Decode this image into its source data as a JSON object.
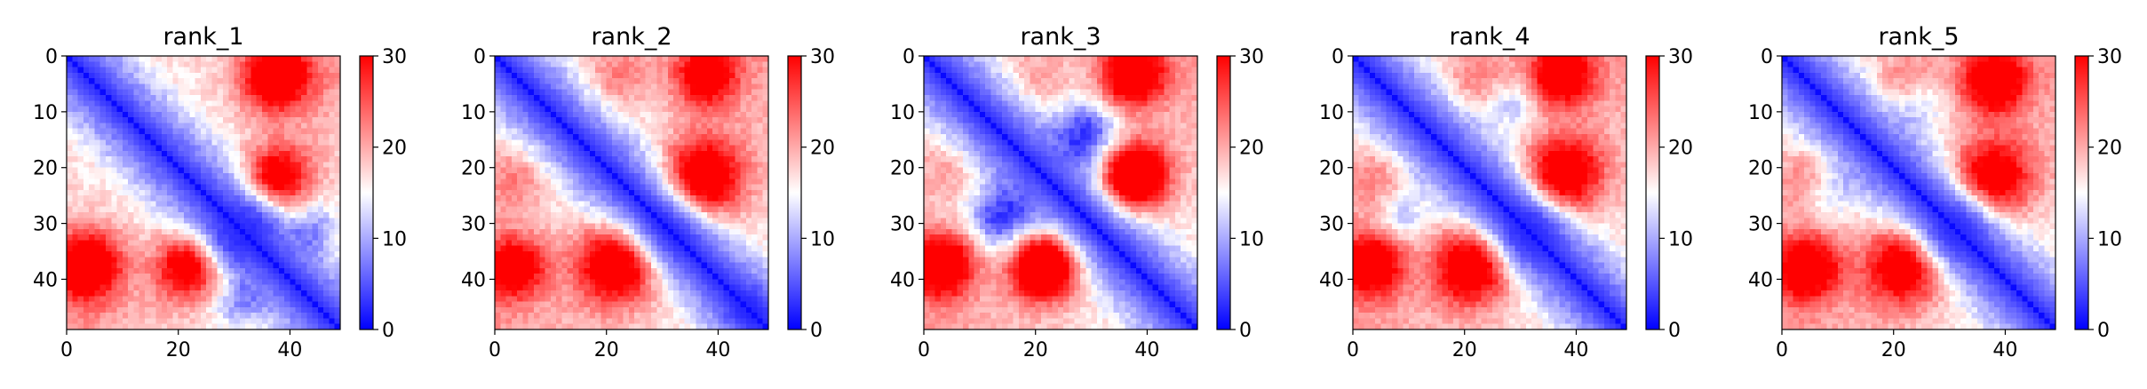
{
  "colors": {
    "low": "#0000ff",
    "mid": "#ffffff",
    "high": "#ff0000",
    "axis": "#000000"
  },
  "chart_data": [
    {
      "type": "heatmap",
      "title": "rank_1",
      "xlim": [
        0,
        49
      ],
      "ylim": [
        49,
        0
      ],
      "xticks": [
        0,
        20,
        40
      ],
      "yticks": [
        0,
        10,
        20,
        30,
        40
      ],
      "colorbar": {
        "colormap": "bwr",
        "min": 0,
        "max": 30,
        "ticks": [
          0,
          10,
          20,
          30
        ]
      },
      "n": 49,
      "hotspots": [
        {
          "x": 38,
          "y": 3,
          "value": 27,
          "sigma": 4.5
        },
        {
          "x": 38,
          "y": 20,
          "value": 24,
          "sigma": 4
        },
        {
          "x": 22,
          "y": 37,
          "value": 26,
          "sigma": 4
        },
        {
          "x": 4,
          "y": 36,
          "value": 25,
          "sigma": 4
        },
        {
          "x": 20,
          "y": 4,
          "value": 16,
          "sigma": 4
        }
      ],
      "coldspots": [
        {
          "x": 29,
          "y": 33,
          "value": 8,
          "sigma": 3.5
        },
        {
          "x": 44,
          "y": 30,
          "value": 9,
          "sigma": 3
        }
      ]
    },
    {
      "type": "heatmap",
      "title": "rank_2",
      "xlim": [
        0,
        49
      ],
      "ylim": [
        49,
        0
      ],
      "xticks": [
        0,
        20,
        40
      ],
      "yticks": [
        0,
        10,
        20,
        30,
        40
      ],
      "colorbar": {
        "colormap": "bwr",
        "min": 0,
        "max": 30,
        "ticks": [
          0,
          10,
          20,
          30
        ]
      },
      "n": 49,
      "hotspots": [
        {
          "x": 37,
          "y": 20,
          "value": 25,
          "sigma": 5
        },
        {
          "x": 22,
          "y": 37,
          "value": 27,
          "sigma": 5
        },
        {
          "x": 3,
          "y": 37,
          "value": 27,
          "sigma": 4
        },
        {
          "x": 38,
          "y": 3,
          "value": 22,
          "sigma": 4
        },
        {
          "x": 3,
          "y": 22,
          "value": 22,
          "sigma": 4
        }
      ],
      "coldspots": [
        {
          "x": 31,
          "y": 31,
          "value": 9,
          "sigma": 3.5
        },
        {
          "x": 45,
          "y": 45,
          "value": 8,
          "sigma": 3
        }
      ]
    },
    {
      "type": "heatmap",
      "title": "rank_3",
      "xlim": [
        0,
        49
      ],
      "ylim": [
        49,
        0
      ],
      "xticks": [
        0,
        20,
        40
      ],
      "yticks": [
        0,
        10,
        20,
        30,
        40
      ],
      "colorbar": {
        "colormap": "bwr",
        "min": 0,
        "max": 30,
        "ticks": [
          0,
          10,
          20,
          30
        ]
      },
      "n": 49,
      "hotspots": [
        {
          "x": 37,
          "y": 21,
          "value": 29,
          "sigma": 4
        },
        {
          "x": 21,
          "y": 37,
          "value": 29,
          "sigma": 4.5
        },
        {
          "x": 3,
          "y": 37,
          "value": 27,
          "sigma": 4
        },
        {
          "x": 37,
          "y": 3,
          "value": 25,
          "sigma": 4
        },
        {
          "x": 3,
          "y": 20,
          "value": 20,
          "sigma": 4
        }
      ],
      "coldspots": [
        {
          "x": 15,
          "y": 30,
          "value": 8,
          "sigma": 4
        },
        {
          "x": 28,
          "y": 12,
          "value": 9,
          "sigma": 3.5
        }
      ]
    },
    {
      "type": "heatmap",
      "title": "rank_4",
      "xlim": [
        0,
        49
      ],
      "ylim": [
        49,
        0
      ],
      "xticks": [
        0,
        20,
        40
      ],
      "yticks": [
        0,
        10,
        20,
        30,
        40
      ],
      "colorbar": {
        "colormap": "bwr",
        "min": 0,
        "max": 30,
        "ticks": [
          0,
          10,
          20,
          30
        ]
      },
      "n": 49,
      "hotspots": [
        {
          "x": 38,
          "y": 20,
          "value": 25,
          "sigma": 5
        },
        {
          "x": 21,
          "y": 37,
          "value": 27,
          "sigma": 4.5
        },
        {
          "x": 3,
          "y": 36,
          "value": 27,
          "sigma": 4
        },
        {
          "x": 38,
          "y": 3,
          "value": 24,
          "sigma": 4
        },
        {
          "x": 3,
          "y": 22,
          "value": 22,
          "sigma": 4
        }
      ],
      "coldspots": [
        {
          "x": 30,
          "y": 32,
          "value": 8,
          "sigma": 3.5
        },
        {
          "x": 28,
          "y": 8,
          "value": 10,
          "sigma": 3
        }
      ]
    },
    {
      "type": "heatmap",
      "title": "rank_5",
      "xlim": [
        0,
        49
      ],
      "ylim": [
        49,
        0
      ],
      "xticks": [
        0,
        20,
        40
      ],
      "yticks": [
        0,
        10,
        20,
        30,
        40
      ],
      "colorbar": {
        "colormap": "bwr",
        "min": 0,
        "max": 30,
        "ticks": [
          0,
          10,
          20,
          30
        ]
      },
      "n": 49,
      "hotspots": [
        {
          "x": 38,
          "y": 21,
          "value": 24,
          "sigma": 5
        },
        {
          "x": 21,
          "y": 37,
          "value": 26,
          "sigma": 5
        },
        {
          "x": 4,
          "y": 37,
          "value": 27,
          "sigma": 4
        },
        {
          "x": 38,
          "y": 4,
          "value": 24,
          "sigma": 4.5
        },
        {
          "x": 4,
          "y": 22,
          "value": 22,
          "sigma": 4
        }
      ],
      "coldspots": [
        {
          "x": 29,
          "y": 32,
          "value": 9,
          "sigma": 3.5
        },
        {
          "x": 24,
          "y": 8,
          "value": 10,
          "sigma": 3
        }
      ]
    }
  ]
}
